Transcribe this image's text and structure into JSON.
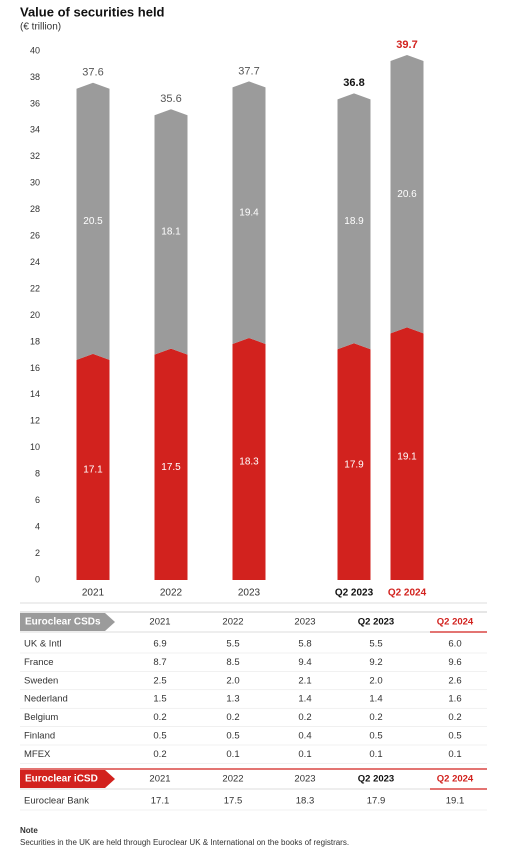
{
  "chart_data": {
    "type": "stacked-bar",
    "title": "Value of securities held",
    "subtitle": "(€ trillion)",
    "categories": [
      "2021",
      "2022",
      "2023",
      "Q2 2023",
      "Q2 2024"
    ],
    "series": [
      {
        "name": "Euroclear iCSD",
        "color": "#d2221e",
        "values": [
          17.1,
          17.5,
          18.3,
          17.9,
          19.1
        ]
      },
      {
        "name": "Euroclear CSDs",
        "color": "#9b9b9b",
        "values": [
          20.5,
          18.1,
          19.4,
          18.9,
          20.6
        ]
      }
    ],
    "totals": [
      37.6,
      35.6,
      37.7,
      36.8,
      39.7
    ],
    "label_colors": [
      "#333333",
      "#333333",
      "#333333",
      "#111111",
      "#d2221e"
    ],
    "emphasis": [
      false,
      false,
      false,
      true,
      true
    ],
    "ylim": [
      0,
      40
    ],
    "yticks": [
      0,
      2,
      4,
      6,
      8,
      10,
      12,
      14,
      16,
      18,
      20,
      22,
      24,
      26,
      28,
      30,
      32,
      34,
      36,
      38,
      40
    ]
  },
  "tables": [
    {
      "label": "Euroclear CSDs",
      "color": "#9b9b9b",
      "columns": [
        "2021",
        "2022",
        "2023",
        "Q2 2023",
        "Q2 2024"
      ],
      "rows": [
        {
          "name": "UK & Intl",
          "values": [
            "6.9",
            "5.5",
            "5.8",
            "5.5",
            "6.0"
          ]
        },
        {
          "name": "France",
          "values": [
            "8.7",
            "8.5",
            "9.4",
            "9.2",
            "9.6"
          ]
        },
        {
          "name": "Sweden",
          "values": [
            "2.5",
            "2.0",
            "2.1",
            "2.0",
            "2.6"
          ]
        },
        {
          "name": "Nederland",
          "values": [
            "1.5",
            "1.3",
            "1.4",
            "1.4",
            "1.6"
          ]
        },
        {
          "name": "Belgium",
          "values": [
            "0.2",
            "0.2",
            "0.2",
            "0.2",
            "0.2"
          ]
        },
        {
          "name": "Finland",
          "values": [
            "0.5",
            "0.5",
            "0.4",
            "0.5",
            "0.5"
          ]
        },
        {
          "name": "MFEX",
          "values": [
            "0.2",
            "0.1",
            "0.1",
            "0.1",
            "0.1"
          ]
        }
      ]
    },
    {
      "label": "Euroclear iCSD",
      "color": "#d2221e",
      "columns": [
        "2021",
        "2022",
        "2023",
        "Q2 2023",
        "Q2 2024"
      ],
      "rows": [
        {
          "name": "Euroclear Bank",
          "values": [
            "17.1",
            "17.5",
            "18.3",
            "17.9",
            "19.1"
          ]
        }
      ]
    }
  ],
  "note": {
    "title": "Note",
    "text": "Securities in the UK are held through Euroclear UK & International on the books of registrars."
  }
}
